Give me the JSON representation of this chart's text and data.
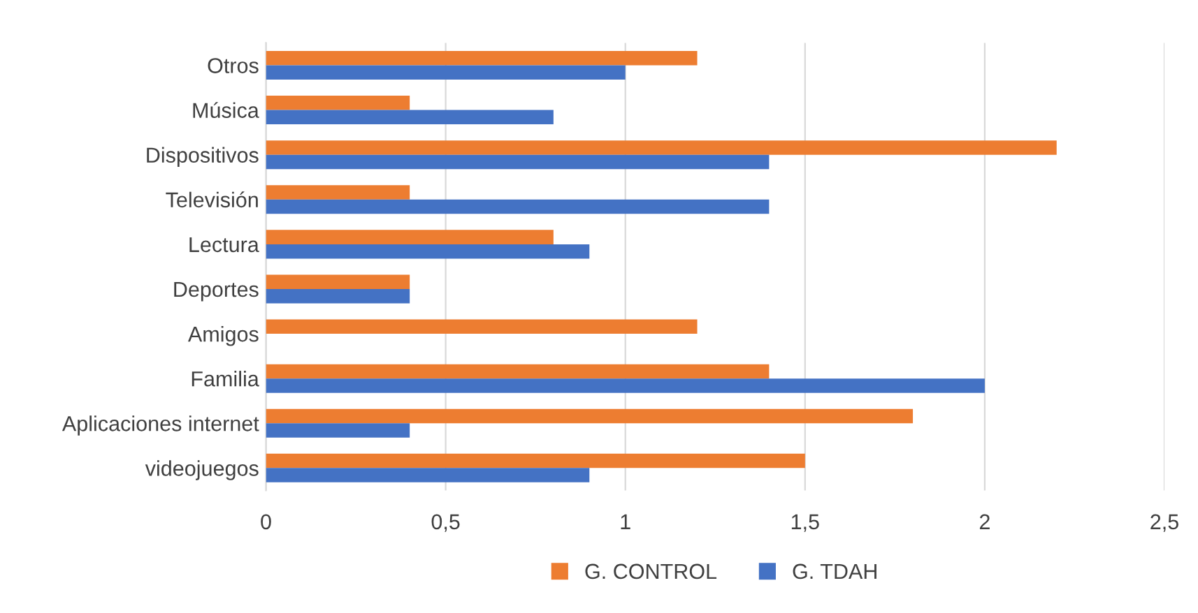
{
  "chart_data": {
    "type": "bar",
    "orientation": "horizontal",
    "categories": [
      "Otros",
      "Música",
      "Dispositivos",
      "Televisión",
      "Lectura",
      "Deportes",
      "Amigos",
      "Familia",
      "Aplicaciones internet",
      "videojuegos"
    ],
    "series": [
      {
        "name": "G. CONTROL",
        "color": "#ed7d31",
        "values": [
          1.2,
          0.4,
          2.2,
          0.4,
          0.8,
          0.4,
          1.2,
          1.4,
          1.8,
          1.5
        ]
      },
      {
        "name": "G. TDAH",
        "color": "#4472c4",
        "values": [
          1.0,
          0.8,
          1.4,
          1.4,
          0.9,
          0.4,
          0,
          2.0,
          0.4,
          0.9
        ]
      }
    ],
    "xlim": [
      0,
      2.5
    ],
    "xticks": [
      {
        "value": 0,
        "label": "0"
      },
      {
        "value": 0.5,
        "label": "0,5"
      },
      {
        "value": 1,
        "label": "1"
      },
      {
        "value": 1.5,
        "label": "1,5"
      },
      {
        "value": 2,
        "label": "2"
      },
      {
        "value": 2.5,
        "label": "2,5"
      }
    ],
    "grid": "x",
    "legend": "bottom"
  }
}
